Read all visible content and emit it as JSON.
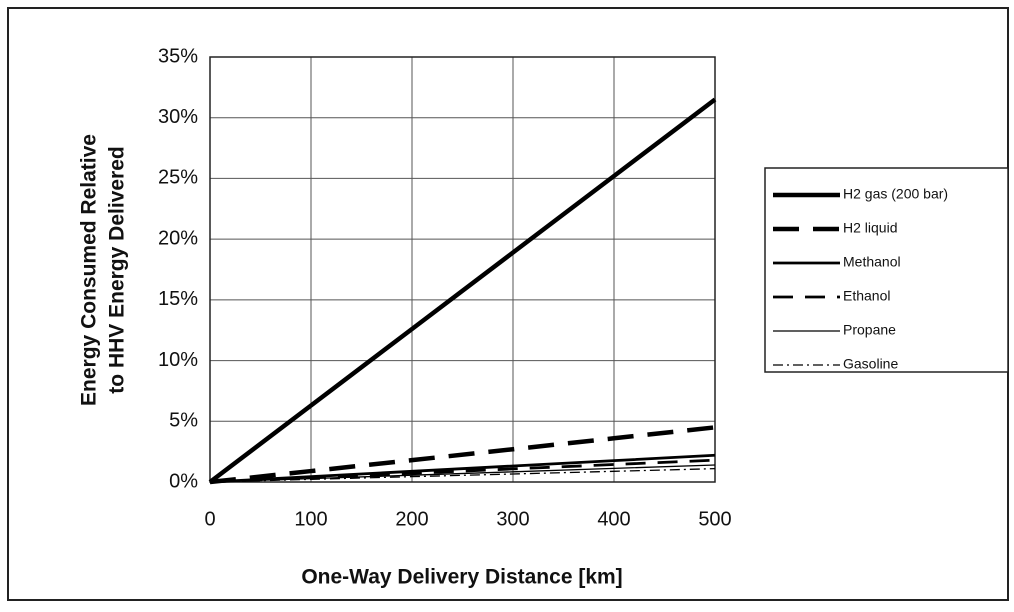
{
  "chart_data": {
    "type": "line",
    "xlabel": "One-Way Delivery Distance [km]",
    "ylabel": [
      "Energy Consumed Relative",
      "to HHV Energy Delivered"
    ],
    "x": [
      0,
      100,
      200,
      300,
      400,
      500
    ],
    "xlim": [
      0,
      500
    ],
    "xticks": [
      0,
      100,
      200,
      300,
      400,
      500
    ],
    "ylim": [
      0,
      35
    ],
    "yticks": [
      {
        "value": 0,
        "label": "0%"
      },
      {
        "value": 5,
        "label": "5%"
      },
      {
        "value": 10,
        "label": "10%"
      },
      {
        "value": 15,
        "label": "15%"
      },
      {
        "value": 20,
        "label": "20%"
      },
      {
        "value": 25,
        "label": "25%"
      },
      {
        "value": 30,
        "label": "30%"
      },
      {
        "value": 35,
        "label": "35%"
      }
    ],
    "grid": true,
    "legend": "right",
    "series": [
      {
        "name": "H2 gas (200 bar)",
        "color": "#000000",
        "width": 4.5,
        "dash": "none",
        "values": [
          0,
          6.3,
          12.6,
          18.9,
          25.2,
          31.5
        ]
      },
      {
        "name": "H2 liquid",
        "color": "#000000",
        "width": 4.5,
        "dash": "26 14",
        "values": [
          0,
          0.9,
          1.8,
          2.7,
          3.6,
          4.5
        ]
      },
      {
        "name": "Methanol",
        "color": "#000000",
        "width": 2.8,
        "dash": "none",
        "values": [
          0,
          0.44,
          0.88,
          1.32,
          1.76,
          2.2
        ]
      },
      {
        "name": "Ethanol",
        "color": "#000000",
        "width": 2.8,
        "dash": "20 12",
        "values": [
          0,
          0.36,
          0.72,
          1.08,
          1.44,
          1.8
        ]
      },
      {
        "name": "Propane",
        "color": "#000000",
        "width": 1.3,
        "dash": "none",
        "values": [
          0,
          0.28,
          0.56,
          0.84,
          1.12,
          1.4
        ]
      },
      {
        "name": "Gasoline",
        "color": "#000000",
        "width": 1.3,
        "dash": "10 4 2 4",
        "values": [
          0,
          0.22,
          0.44,
          0.66,
          0.88,
          1.1
        ]
      }
    ]
  }
}
